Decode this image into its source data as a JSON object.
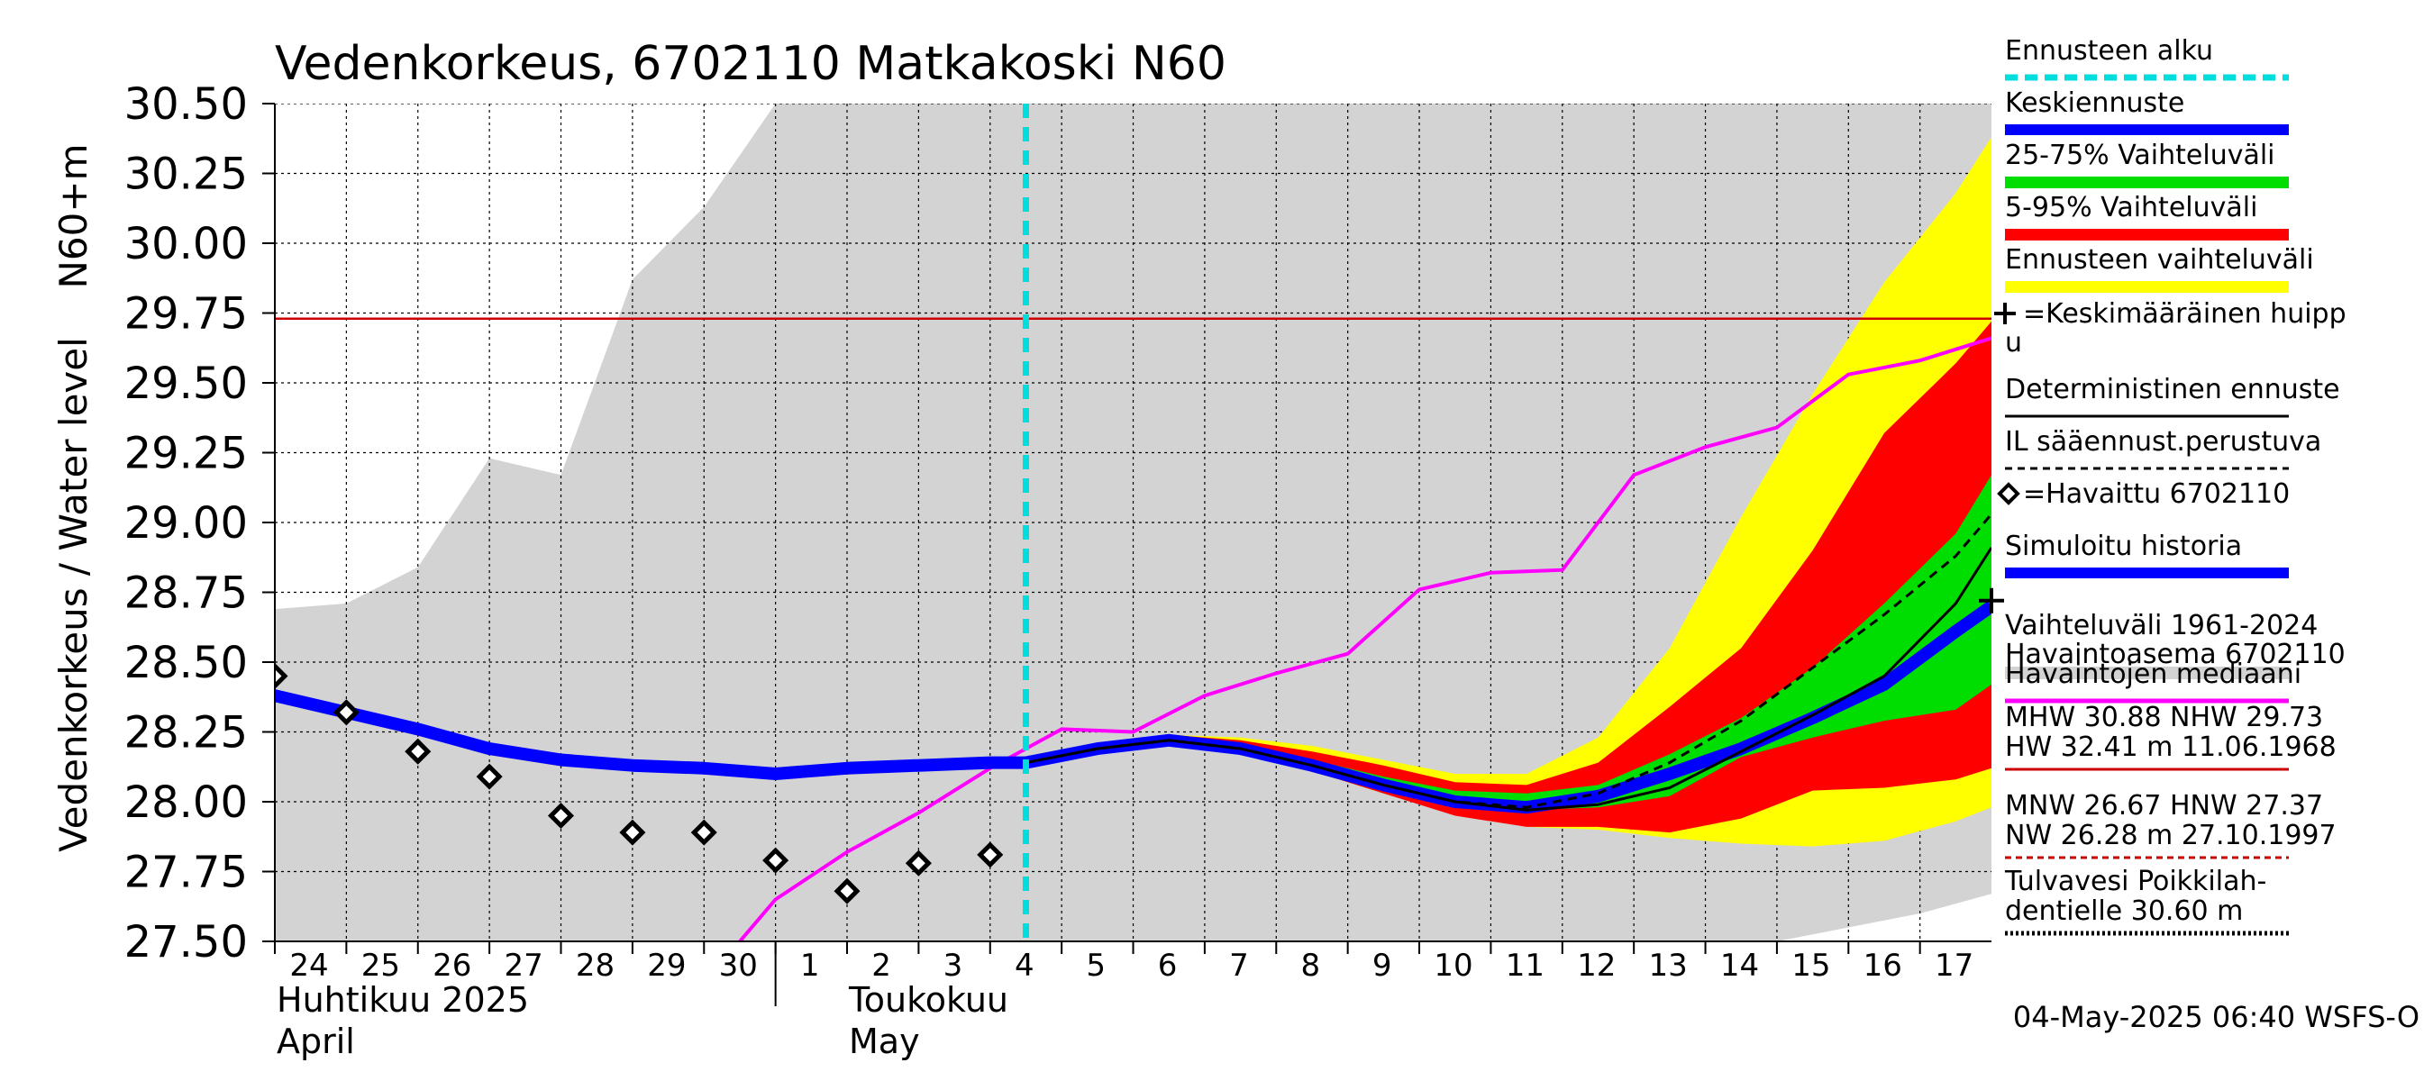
{
  "chart_data": {
    "type": "line",
    "title": "Vedenkorkeus, 6702110 Matkakoski N60",
    "ylabel_lines": [
      "Vedenkorkeus / Water level",
      "N60+m"
    ],
    "ylim": [
      27.5,
      30.5
    ],
    "yticks": [
      27.5,
      27.75,
      28.0,
      28.25,
      28.5,
      28.75,
      29.0,
      29.25,
      29.5,
      29.75,
      30.0,
      30.25,
      30.5
    ],
    "ytick_labels": [
      "27.50",
      "27.75",
      "28.00",
      "28.25",
      "28.50",
      "28.75",
      "29.00",
      "29.25",
      "29.50",
      "29.75",
      "30.00",
      "30.25",
      "30.50"
    ],
    "x_start": "2025-04-24",
    "x_end": "2025-05-17T23:59",
    "day_labels": [
      {
        "date": "2025-04-24",
        "label": "24"
      },
      {
        "date": "2025-04-25",
        "label": "25"
      },
      {
        "date": "2025-04-26",
        "label": "26"
      },
      {
        "date": "2025-04-27",
        "label": "27"
      },
      {
        "date": "2025-04-28",
        "label": "28"
      },
      {
        "date": "2025-04-29",
        "label": "29"
      },
      {
        "date": "2025-04-30",
        "label": "30"
      },
      {
        "date": "2025-05-01",
        "label": "1"
      },
      {
        "date": "2025-05-02",
        "label": "2"
      },
      {
        "date": "2025-05-03",
        "label": "3"
      },
      {
        "date": "2025-05-04",
        "label": "4"
      },
      {
        "date": "2025-05-05",
        "label": "5"
      },
      {
        "date": "2025-05-06",
        "label": "6"
      },
      {
        "date": "2025-05-07",
        "label": "7"
      },
      {
        "date": "2025-05-08",
        "label": "8"
      },
      {
        "date": "2025-05-09",
        "label": "9"
      },
      {
        "date": "2025-05-10",
        "label": "10"
      },
      {
        "date": "2025-05-11",
        "label": "11"
      },
      {
        "date": "2025-05-12",
        "label": "12"
      },
      {
        "date": "2025-05-13",
        "label": "13"
      },
      {
        "date": "2025-05-14",
        "label": "14"
      },
      {
        "date": "2025-05-15",
        "label": "15"
      },
      {
        "date": "2025-05-16",
        "label": "16"
      },
      {
        "date": "2025-05-17",
        "label": "17"
      }
    ],
    "month_labels": [
      {
        "date": "2025-04-24",
        "lines": [
          "Huhtikuu  2025",
          "April"
        ]
      },
      {
        "date": "2025-05-02",
        "lines": [
          "Toukokuu",
          "May"
        ]
      }
    ],
    "month_boundary": "2025-05-01",
    "forecast_start": "2025-05-04T12:00",
    "reference_line": {
      "y": 29.73,
      "color": "#cc0000"
    },
    "colors": {
      "history_band": "#d3d3d3",
      "forecast_range": "#ffff00",
      "p5_95": "#ff0000",
      "p25_75": "#00dd00",
      "mean_forecast": "#0000ff",
      "simulated_history": "#0000ff",
      "median_obs": "#ff00ff",
      "forecast_start": "#00dddd",
      "deterministic": "#000000",
      "weather_based": "#000000",
      "mhw_line": "#cc0000",
      "mnw_line": "#cc0000",
      "flood_line": "#000000"
    },
    "history_band": {
      "x": [
        "2025-04-24",
        "2025-04-25",
        "2025-04-26",
        "2025-04-27",
        "2025-04-28",
        "2025-04-29",
        "2025-04-30",
        "2025-05-01",
        "2025-05-02",
        "2025-05-03",
        "2025-05-04",
        "2025-05-05",
        "2025-05-06",
        "2025-05-07",
        "2025-05-08",
        "2025-05-09",
        "2025-05-10",
        "2025-05-11",
        "2025-05-12",
        "2025-05-13",
        "2025-05-14",
        "2025-05-15",
        "2025-05-16",
        "2025-05-17",
        "2025-05-18"
      ],
      "upper": [
        28.69,
        28.71,
        28.84,
        29.23,
        29.17,
        29.87,
        30.13,
        30.5,
        30.5,
        30.5,
        30.5,
        30.5,
        30.5,
        30.5,
        30.5,
        30.5,
        30.5,
        30.5,
        30.5,
        30.5,
        30.5,
        30.5,
        30.5,
        30.5,
        30.5
      ],
      "lower": [
        27.5,
        27.5,
        27.5,
        27.5,
        27.5,
        27.5,
        27.5,
        27.5,
        27.5,
        27.5,
        27.5,
        27.5,
        27.5,
        27.5,
        27.5,
        27.5,
        27.5,
        27.5,
        27.5,
        27.5,
        27.5,
        27.5,
        27.55,
        27.6,
        27.67
      ]
    },
    "forecast_x": [
      "2025-05-04T12:00",
      "2025-05-05T12:00",
      "2025-05-06T12:00",
      "2025-05-07T12:00",
      "2025-05-08T12:00",
      "2025-05-09T12:00",
      "2025-05-10T12:00",
      "2025-05-11T12:00",
      "2025-05-12T12:00",
      "2025-05-13T12:00",
      "2025-05-14T12:00",
      "2025-05-15T12:00",
      "2025-05-16T12:00",
      "2025-05-17T12:00",
      "2025-05-18"
    ],
    "forecast_range": {
      "upper": [
        28.14,
        28.19,
        28.24,
        28.23,
        28.2,
        28.15,
        28.1,
        28.1,
        28.23,
        28.55,
        29.02,
        29.46,
        29.86,
        30.18,
        30.38
      ],
      "lower": [
        28.14,
        28.19,
        28.21,
        28.17,
        28.11,
        28.03,
        27.96,
        27.91,
        27.9,
        27.87,
        27.85,
        27.84,
        27.86,
        27.93,
        27.98
      ]
    },
    "p5_95": {
      "upper": [
        28.14,
        28.19,
        28.24,
        28.22,
        28.18,
        28.13,
        28.07,
        28.06,
        28.14,
        28.34,
        28.55,
        28.9,
        29.32,
        29.57,
        29.72
      ],
      "lower": [
        28.14,
        28.19,
        28.21,
        28.17,
        28.11,
        28.03,
        27.95,
        27.91,
        27.91,
        27.89,
        27.94,
        28.04,
        28.05,
        28.08,
        28.12
      ]
    },
    "p25_75": {
      "upper": [
        28.14,
        28.19,
        28.23,
        28.2,
        28.15,
        28.09,
        28.04,
        28.03,
        28.06,
        28.17,
        28.3,
        28.48,
        28.71,
        28.96,
        29.17
      ],
      "lower": [
        28.14,
        28.19,
        28.21,
        28.18,
        28.12,
        28.05,
        28.0,
        27.97,
        27.98,
        28.02,
        28.16,
        28.23,
        28.29,
        28.33,
        28.42
      ]
    },
    "median_forecast": {
      "y": [
        28.14,
        28.19,
        28.22,
        28.19,
        28.13,
        28.06,
        28.0,
        27.98,
        28.02,
        28.1,
        28.19,
        28.3,
        28.42,
        28.61,
        28.7
      ]
    },
    "deterministic": {
      "y": [
        28.14,
        28.19,
        28.22,
        28.19,
        28.13,
        28.06,
        28.0,
        27.97,
        27.99,
        28.05,
        28.18,
        28.31,
        28.45,
        28.71,
        28.91
      ]
    },
    "weather_based": {
      "y": [
        28.14,
        28.19,
        28.22,
        28.19,
        28.13,
        28.06,
        28.0,
        27.98,
        28.03,
        28.14,
        28.29,
        28.48,
        28.67,
        28.88,
        29.03
      ]
    },
    "simulated_history": {
      "x": [
        "2025-04-24",
        "2025-04-25",
        "2025-04-26",
        "2025-04-27",
        "2025-04-28",
        "2025-04-29",
        "2025-04-30",
        "2025-05-01",
        "2025-05-02",
        "2025-05-03",
        "2025-05-04",
        "2025-05-04T12:00"
      ],
      "y": [
        28.38,
        28.32,
        28.26,
        28.19,
        28.15,
        28.13,
        28.12,
        28.1,
        28.12,
        28.13,
        28.14,
        28.14
      ]
    },
    "observed": {
      "x": [
        "2025-04-24",
        "2025-04-25",
        "2025-04-26",
        "2025-04-27",
        "2025-04-28",
        "2025-04-29",
        "2025-04-30",
        "2025-05-01",
        "2025-05-02",
        "2025-05-03",
        "2025-05-04"
      ],
      "y": [
        28.45,
        28.32,
        28.18,
        28.09,
        27.95,
        27.89,
        27.89,
        27.79,
        27.68,
        27.78,
        27.81
      ]
    },
    "median_obs": {
      "x": [
        "2025-04-30T12:00",
        "2025-05-01",
        "2025-05-02",
        "2025-05-03",
        "2025-05-04",
        "2025-05-05",
        "2025-05-06",
        "2025-05-07",
        "2025-05-08",
        "2025-05-09",
        "2025-05-10",
        "2025-05-11",
        "2025-05-12",
        "2025-05-13",
        "2025-05-14",
        "2025-05-15",
        "2025-05-16",
        "2025-05-17",
        "2025-05-18"
      ],
      "y": [
        27.5,
        27.65,
        27.82,
        27.96,
        28.12,
        28.26,
        28.25,
        28.38,
        28.46,
        28.53,
        28.76,
        28.82,
        28.83,
        29.17,
        29.27,
        29.34,
        29.53,
        29.58,
        29.66
      ]
    },
    "mean_peak_marker": {
      "date": "2025-05-18",
      "y": 28.72
    },
    "legend": [
      {
        "label": "Ennusteen alku",
        "style": "dashed-cyan"
      },
      {
        "label": "Keskiennuste",
        "style": "thick-blue"
      },
      {
        "label": "25-75% Vaihteluväli",
        "style": "band-green"
      },
      {
        "label": "5-95% Vaihteluväli",
        "style": "band-red"
      },
      {
        "label": "Ennusteen vaihteluväli",
        "style": "band-yellow"
      },
      {
        "label": "=Keskimääräinen huipp",
        "label2": "u",
        "style": "plus"
      },
      {
        "label": "Deterministinen ennuste",
        "style": "thin-black"
      },
      {
        "label": "IL sääennust.perustuva",
        "style": "dashed-black"
      },
      {
        "label": "=Havaittu 6702110",
        "style": "diamond"
      },
      {
        "label": "Simuloitu historia",
        "style": "thick-blue"
      },
      {
        "label": "Vaihteluväli 1961-2024",
        "label2": " Havaintoasema 6702110",
        "style": "band-gray"
      },
      {
        "label": "Havaintojen mediaani",
        "style": "magenta"
      }
    ],
    "stats": [
      {
        "line1": "MHW  30.88 NHW  29.73",
        "line2": "HW  32.41 m 11.06.1968",
        "style": "solid-red"
      },
      {
        "line1": "MNW  26.67 HNW  27.37",
        "line2": "NW  26.28 m 27.10.1997",
        "style": "dashed-red"
      },
      {
        "line1": "Tulvavesi Poikkilah-",
        "line2": "dentielle 30.60 m",
        "style": "dotted-black"
      }
    ],
    "grid": true,
    "legend_position": "right"
  },
  "footer": {
    "timestamp": "04-May-2025 06:40 WSFS-O"
  }
}
